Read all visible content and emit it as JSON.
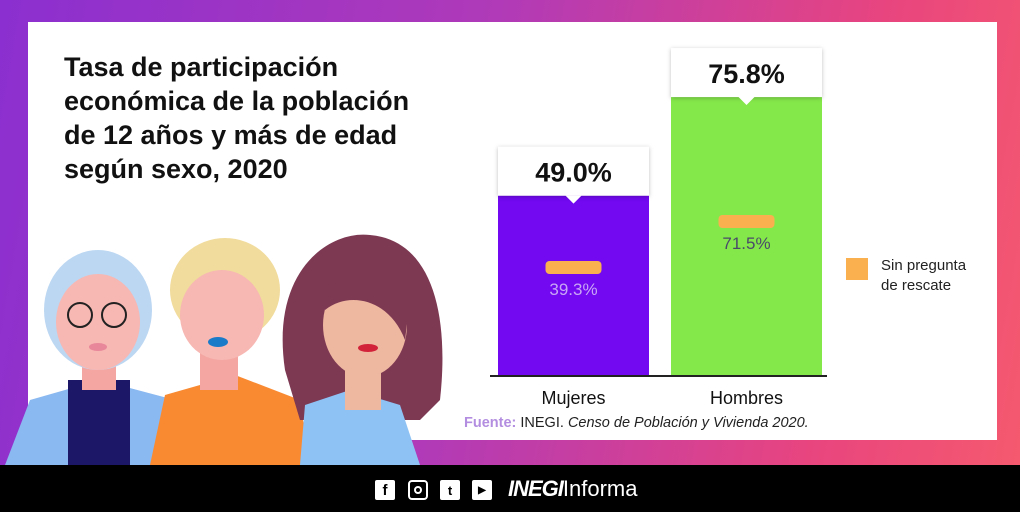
{
  "title": "Tasa de participación económica de la población de 12 años y más de edad según sexo, 2020",
  "chart_data": {
    "type": "bar",
    "categories": [
      "Mujeres",
      "Hombres"
    ],
    "values": [
      49.0,
      75.8
    ],
    "value_labels": [
      "49.0%",
      "75.8%"
    ],
    "bar_colors": [
      "#7209f0",
      "#84e84a"
    ],
    "secondary": {
      "name": "Sin pregunta de rescate",
      "values": [
        39.3,
        71.5
      ],
      "labels": [
        "39.3%",
        "71.5%"
      ],
      "color": "#fbb04f"
    },
    "ylim": [
      0,
      80
    ],
    "grid": false,
    "legend_position": "right"
  },
  "legend": {
    "label": "Sin pregunta de rescate"
  },
  "source": {
    "label": "Fuente:",
    "org": "INEGI.",
    "text": "Censo de Población y Vivienda 2020."
  },
  "footer": {
    "icons": [
      "facebook-icon",
      "instagram-icon",
      "twitter-icon",
      "youtube-icon"
    ],
    "brand_bold": "INEGI",
    "brand_rest": "Informa"
  }
}
